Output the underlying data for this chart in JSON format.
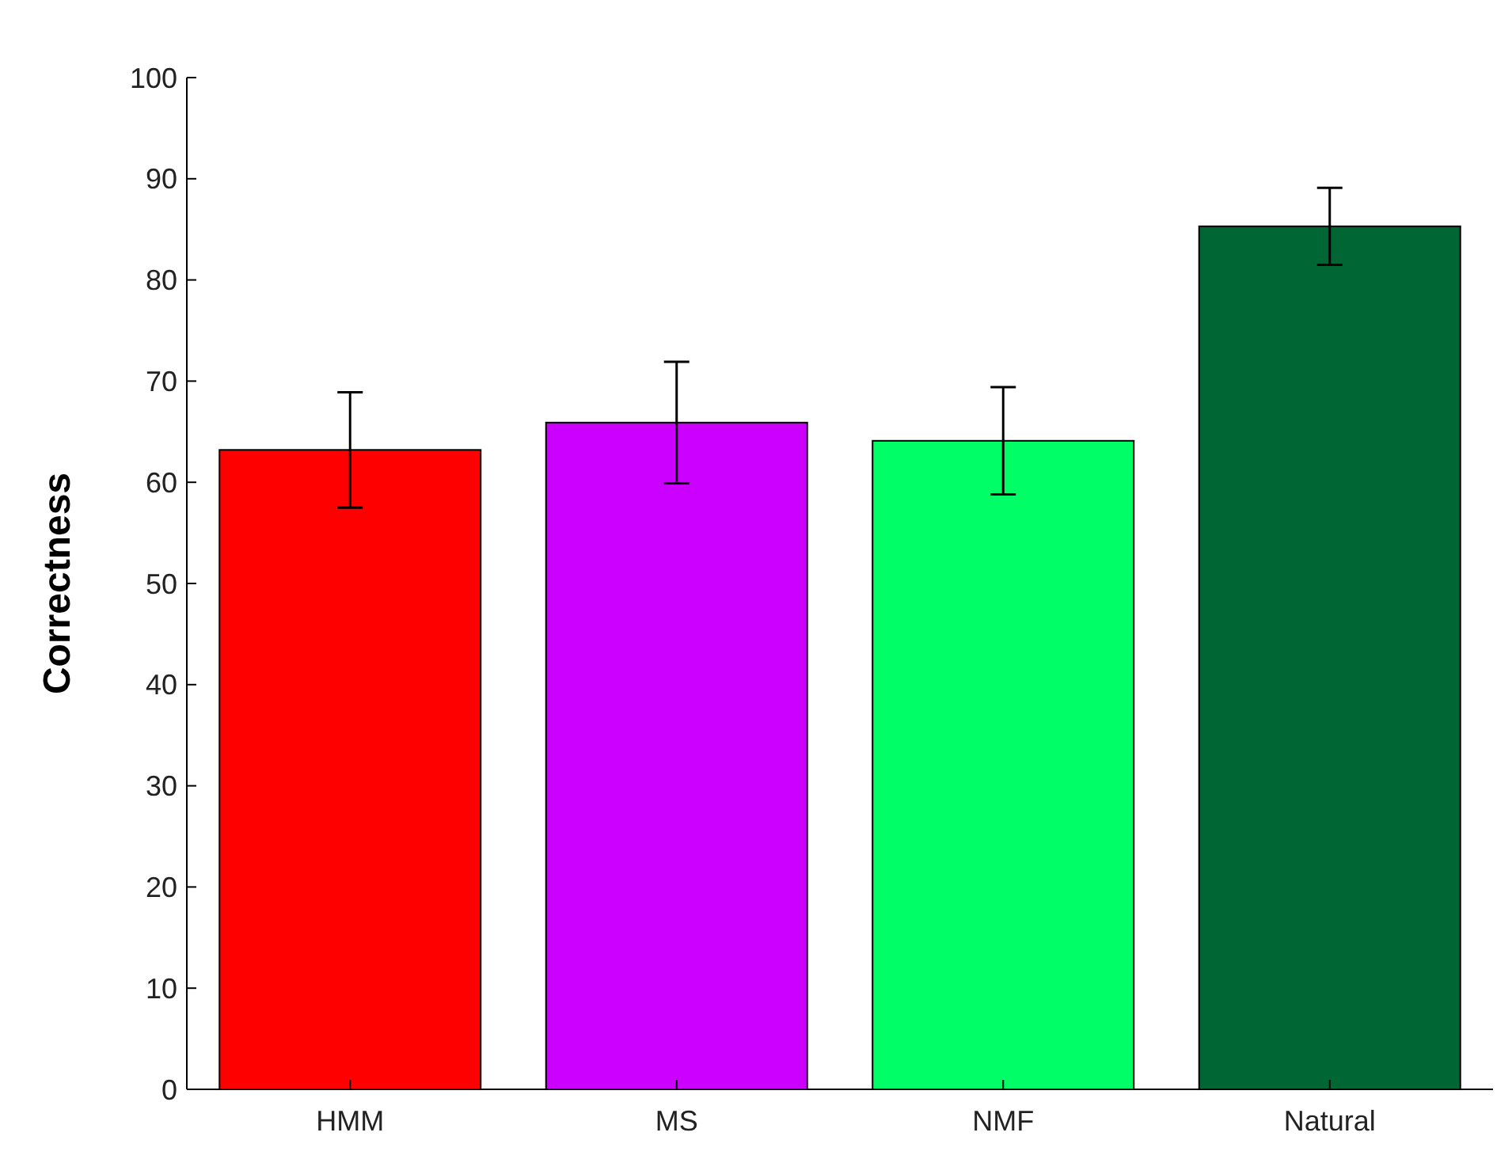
{
  "chart_data": {
    "type": "bar",
    "ylabel": "Correctness",
    "categories": [
      "HMM",
      "MS",
      "NMF",
      "Natural"
    ],
    "values": [
      63.2,
      65.9,
      64.1,
      85.3
    ],
    "colors": [
      "#ff0000",
      "#cc00ff",
      "#00ff66",
      "#006633"
    ],
    "errors": [
      5.7,
      6,
      5.3,
      3.8
    ],
    "ylim": [
      0,
      100
    ],
    "yticks": [
      0,
      10,
      20,
      30,
      40,
      50,
      60,
      70,
      80,
      90,
      100
    ],
    "grid": false
  }
}
